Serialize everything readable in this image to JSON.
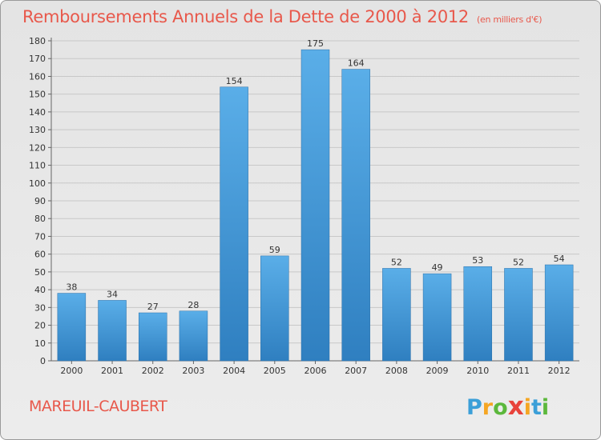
{
  "chart_data": {
    "type": "bar",
    "title": "Remboursements Annuels de la Dette de 2000 à 2012",
    "unit_label": "(en milliers d'€)",
    "categories": [
      "2000",
      "2001",
      "2002",
      "2003",
      "2004",
      "2005",
      "2006",
      "2007",
      "2008",
      "2009",
      "2010",
      "2011",
      "2012"
    ],
    "values": [
      38,
      34,
      27,
      28,
      154,
      59,
      175,
      164,
      52,
      49,
      53,
      52,
      54
    ],
    "ylim": [
      0,
      180
    ],
    "yticks": [
      0,
      10,
      20,
      30,
      40,
      50,
      60,
      70,
      80,
      90,
      100,
      110,
      120,
      130,
      140,
      150,
      160,
      170,
      180
    ],
    "grid": true
  },
  "commune": "MAREUIL-CAUBERT",
  "logo": {
    "letters": [
      "P",
      "r",
      "o",
      "x",
      "i",
      "t",
      "i"
    ],
    "colors": [
      "#3b9fd8",
      "#f5a623",
      "#5cb83c",
      "#e8433b",
      "#f5a623",
      "#3b9fd8",
      "#5cb83c"
    ]
  },
  "colors": {
    "bar_top": "#5aaee8",
    "bar_bottom": "#2f7fc0",
    "accent": "#e8584b"
  }
}
